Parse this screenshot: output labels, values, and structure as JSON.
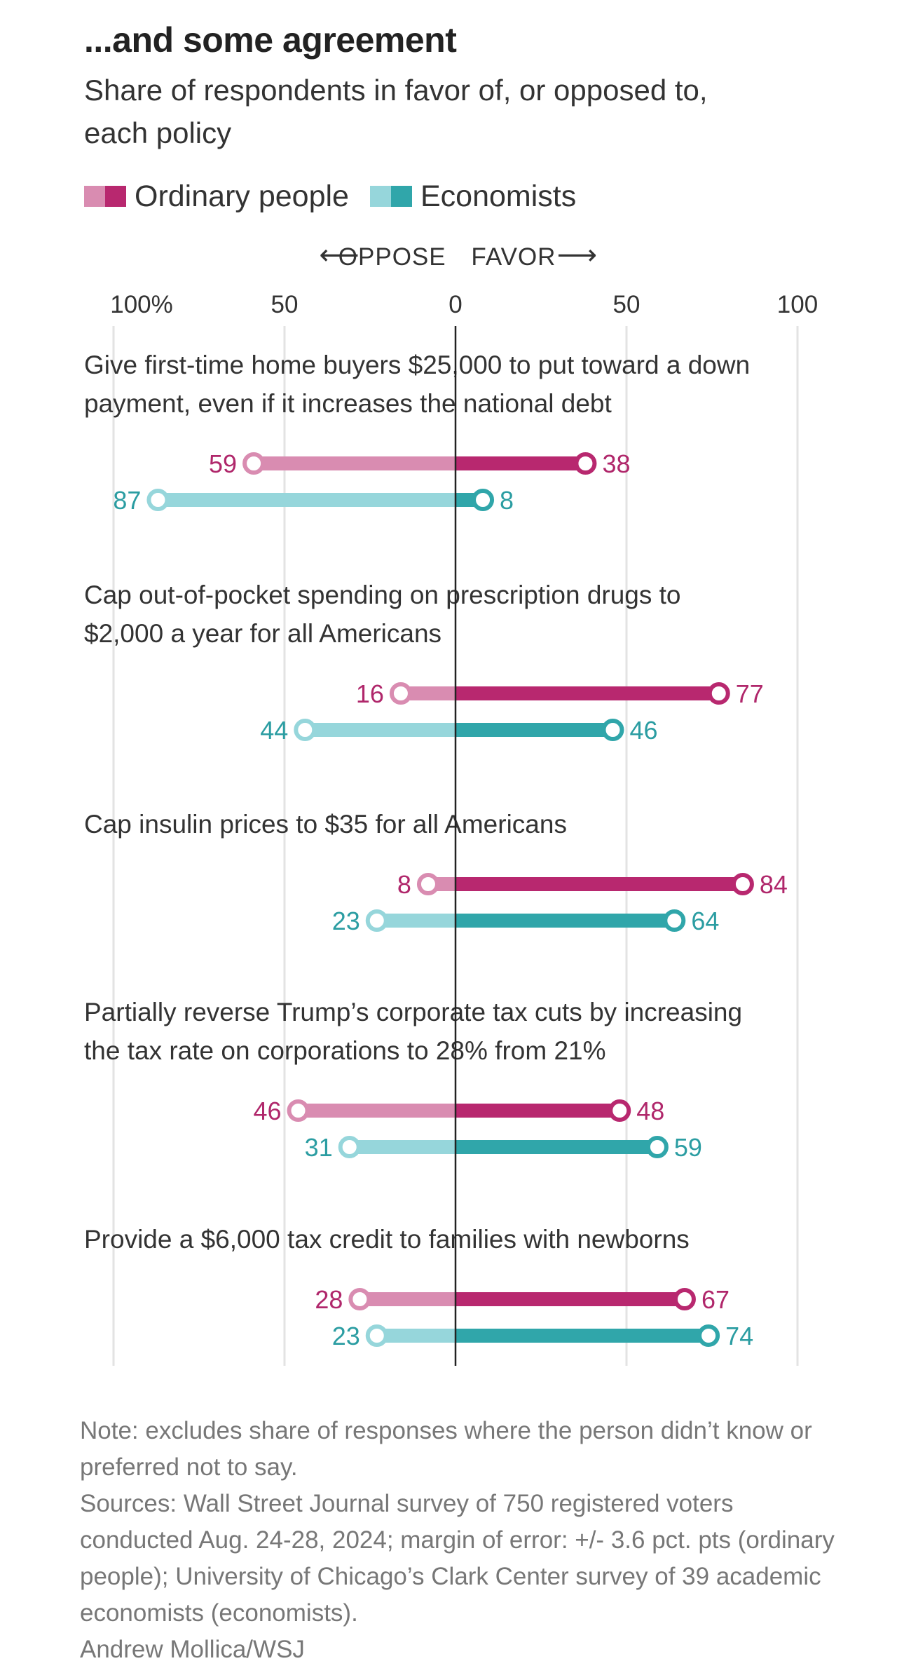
{
  "title": "...and some agreement",
  "subtitle": "Share of respondents in favor of, or opposed to, each policy",
  "legend": [
    {
      "name": "Ordinary people",
      "light": "#d98cb1",
      "dark": "#b8286f"
    },
    {
      "name": "Economists",
      "light": "#96d6db",
      "dark": "#30a6aa"
    }
  ],
  "direction": {
    "oppose": "OPPOSE",
    "favor": "FAVOR",
    "left_arrow": "⟵",
    "right_arrow": "⟶"
  },
  "colors": {
    "ordinary_light": "#d98cb1",
    "ordinary_dark": "#b8286f",
    "ordinary_text": "#b0276b",
    "econ_light": "#96d6db",
    "econ_dark": "#30a6aa",
    "econ_text": "#2b9da2",
    "grid": "#e3e3e3",
    "zero": "#222222"
  },
  "chart_data": {
    "type": "bar",
    "subtype": "diverging-dot-bar",
    "xlim": [
      -100,
      100
    ],
    "x_ticks": [
      {
        "value": -100,
        "label": "100%"
      },
      {
        "value": -50,
        "label": "50"
      },
      {
        "value": 0,
        "label": "0"
      },
      {
        "value": 50,
        "label": "50"
      },
      {
        "value": 100,
        "label": "100"
      }
    ],
    "series": [
      {
        "name": "Ordinary people"
      },
      {
        "name": "Economists"
      }
    ],
    "categories": [
      {
        "label_lines": [
          "Give first-time home buyers $25,000 to put toward a down",
          "payment, even if it increases the national debt"
        ],
        "ordinary": {
          "oppose": 59,
          "favor": 38
        },
        "economists": {
          "oppose": 87,
          "favor": 8
        }
      },
      {
        "label_lines": [
          "Cap out-of-pocket spending on prescription drugs to",
          "$2,000 a year for all Americans"
        ],
        "ordinary": {
          "oppose": 16,
          "favor": 77
        },
        "economists": {
          "oppose": 44,
          "favor": 46
        }
      },
      {
        "label_lines": [
          "Cap insulin prices to $35 for all Americans"
        ],
        "ordinary": {
          "oppose": 8,
          "favor": 84
        },
        "economists": {
          "oppose": 23,
          "favor": 64
        }
      },
      {
        "label_lines": [
          "Partially reverse Trump’s corporate tax cuts by increasing",
          "the tax rate on corporations to 28% from 21%"
        ],
        "ordinary": {
          "oppose": 46,
          "favor": 48
        },
        "economists": {
          "oppose": 31,
          "favor": 59
        }
      },
      {
        "label_lines": [
          "Provide a $6,000 tax credit to families with newborns"
        ],
        "ordinary": {
          "oppose": 28,
          "favor": 67
        },
        "economists": {
          "oppose": 23,
          "favor": 74
        }
      }
    ]
  },
  "notes": [
    "Note: excludes share of responses where the person didn’t know or preferred not to say.",
    "Sources: Wall Street Journal survey of 750 registered voters conducted Aug. 24-28, 2024; margin of error: +/- 3.6 pct. pts (ordinary people); University of Chicago’s Clark Center survey of 39 academic economists (economists).",
    "Andrew Mollica/WSJ"
  ]
}
